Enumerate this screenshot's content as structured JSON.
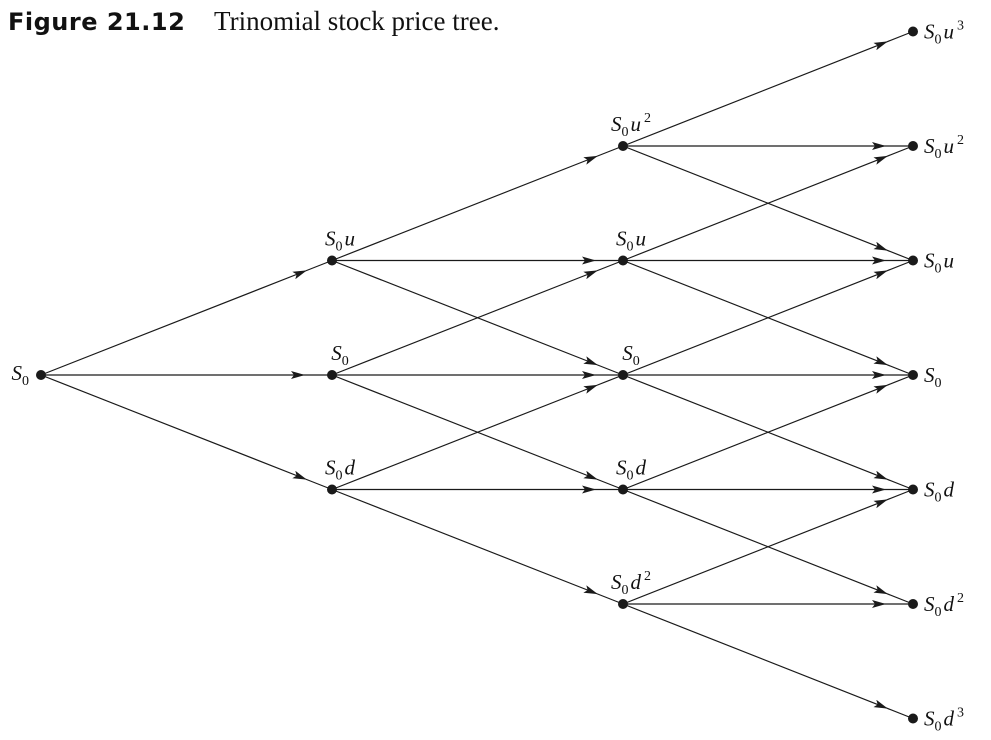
{
  "caption": {
    "label": "Figure 21.12",
    "title": "Trinomial stock price tree."
  },
  "tree": {
    "nodes": [
      {
        "id": "n0",
        "step": 0,
        "level": 0,
        "label": {
          "base": "S",
          "sub": "0",
          "factor": "",
          "exp": ""
        }
      },
      {
        "id": "n1u",
        "step": 1,
        "level": 1,
        "label": {
          "base": "S",
          "sub": "0",
          "factor": "u",
          "exp": ""
        }
      },
      {
        "id": "n1m",
        "step": 1,
        "level": 0,
        "label": {
          "base": "S",
          "sub": "0",
          "factor": "",
          "exp": ""
        }
      },
      {
        "id": "n1d",
        "step": 1,
        "level": -1,
        "label": {
          "base": "S",
          "sub": "0",
          "factor": "d",
          "exp": ""
        }
      },
      {
        "id": "n2uu",
        "step": 2,
        "level": 2,
        "label": {
          "base": "S",
          "sub": "0",
          "factor": "u",
          "exp": "2"
        }
      },
      {
        "id": "n2u",
        "step": 2,
        "level": 1,
        "label": {
          "base": "S",
          "sub": "0",
          "factor": "u",
          "exp": ""
        }
      },
      {
        "id": "n2m",
        "step": 2,
        "level": 0,
        "label": {
          "base": "S",
          "sub": "0",
          "factor": "",
          "exp": ""
        }
      },
      {
        "id": "n2d",
        "step": 2,
        "level": -1,
        "label": {
          "base": "S",
          "sub": "0",
          "factor": "d",
          "exp": ""
        }
      },
      {
        "id": "n2dd",
        "step": 2,
        "level": -2,
        "label": {
          "base": "S",
          "sub": "0",
          "factor": "d",
          "exp": "2"
        }
      },
      {
        "id": "n3u3",
        "step": 3,
        "level": 3,
        "label": {
          "base": "S",
          "sub": "0",
          "factor": "u",
          "exp": "3"
        }
      },
      {
        "id": "n3u2",
        "step": 3,
        "level": 2,
        "label": {
          "base": "S",
          "sub": "0",
          "factor": "u",
          "exp": "2"
        }
      },
      {
        "id": "n3u",
        "step": 3,
        "level": 1,
        "label": {
          "base": "S",
          "sub": "0",
          "factor": "u",
          "exp": ""
        }
      },
      {
        "id": "n3m",
        "step": 3,
        "level": 0,
        "label": {
          "base": "S",
          "sub": "0",
          "factor": "",
          "exp": ""
        }
      },
      {
        "id": "n3d",
        "step": 3,
        "level": -1,
        "label": {
          "base": "S",
          "sub": "0",
          "factor": "d",
          "exp": ""
        }
      },
      {
        "id": "n3d2",
        "step": 3,
        "level": -2,
        "label": {
          "base": "S",
          "sub": "0",
          "factor": "d",
          "exp": "2"
        }
      },
      {
        "id": "n3d3",
        "step": 3,
        "level": -3,
        "label": {
          "base": "S",
          "sub": "0",
          "factor": "d",
          "exp": "3"
        }
      }
    ],
    "colors": {
      "line": "#1a1a1a",
      "node": "#1a1a1a"
    }
  }
}
